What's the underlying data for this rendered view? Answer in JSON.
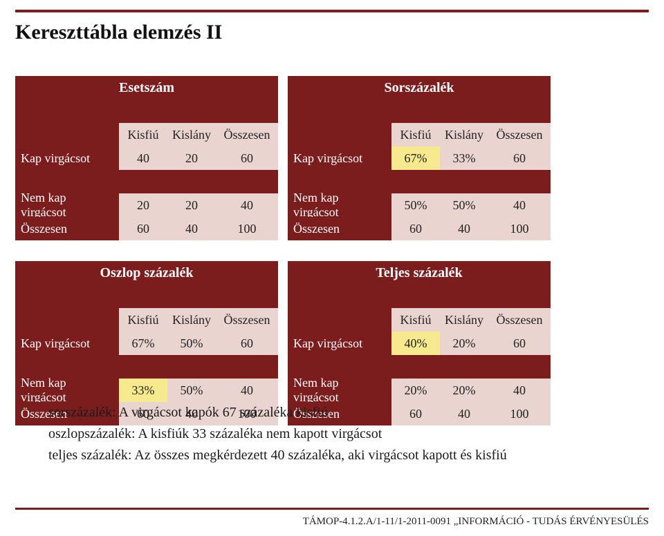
{
  "title": {
    "text": "Kereszttábla elemzés II",
    "fontsize": 30
  },
  "colors": {
    "accent": "#7b1d1d",
    "row_light": "#e9d4d0",
    "highlight": "#f7e98e",
    "text": "#1a1a1a",
    "bg": "#ffffff"
  },
  "font": {
    "body_size": 18,
    "header_size": 20,
    "interp_size": 20,
    "footer_size": 15
  },
  "labels": {
    "esetszam": "Esetszám",
    "sorszazalek": "Sorszázalék",
    "oszlop": "Oszlop százalék",
    "teljes": "Teljes százalék",
    "kisfiu": "Kisfiú",
    "kislany": "Kislány",
    "osszesen": "Összesen",
    "kap": "Kap virgácsot",
    "nemkap": "Nem kap virgácsot"
  },
  "tables": {
    "esetszam": {
      "header": "Esetszám",
      "cols": [
        "Kisfiú",
        "Kislány",
        "Összesen"
      ],
      "rows": [
        {
          "label": "Kap virgácsot",
          "vals": [
            "40",
            "20",
            "60"
          ],
          "hl": []
        },
        {
          "label": "Nem kap virgácsot",
          "vals": [
            "20",
            "20",
            "40"
          ],
          "hl": []
        },
        {
          "label": "Összesen",
          "vals": [
            "60",
            "40",
            "100"
          ],
          "hl": []
        }
      ]
    },
    "sorszazalek": {
      "header": "Sorszázalék",
      "cols": [
        "Kisfiú",
        "Kislány",
        "Összesen"
      ],
      "rows": [
        {
          "label": "Kap virgácsot",
          "vals": [
            "67%",
            "33%",
            "60"
          ],
          "hl": [
            0
          ]
        },
        {
          "label": "Nem kap virgácsot",
          "vals": [
            "50%",
            "50%",
            "40"
          ],
          "hl": []
        },
        {
          "label": "Összesen",
          "vals": [
            "60",
            "40",
            "100"
          ],
          "hl": []
        }
      ]
    },
    "oszlop": {
      "header": "Oszlop százalék",
      "cols": [
        "Kisfiú",
        "Kislány",
        "Összesen"
      ],
      "rows": [
        {
          "label": "Kap virgácsot",
          "vals": [
            "67%",
            "50%",
            "60"
          ],
          "hl": []
        },
        {
          "label": "Nem kap virgácsot",
          "vals": [
            "33%",
            "50%",
            "40"
          ],
          "hl": [
            0
          ]
        },
        {
          "label": "Összesen",
          "vals": [
            "60",
            "40",
            "100"
          ],
          "hl": []
        }
      ]
    },
    "teljes": {
      "header": "Teljes százalék",
      "cols": [
        "Kisfiú",
        "Kislány",
        "Összesen"
      ],
      "rows": [
        {
          "label": "Kap virgácsot",
          "vals": [
            "40%",
            "20%",
            "60"
          ],
          "hl": [
            0
          ]
        },
        {
          "label": "Nem kap virgácsot",
          "vals": [
            "20%",
            "20%",
            "40"
          ],
          "hl": []
        },
        {
          "label": "Összesen",
          "vals": [
            "60",
            "40",
            "100"
          ],
          "hl": []
        }
      ]
    }
  },
  "interpretation": {
    "line1": "sorszázalék: A virgácsot kapók 67 százaléka kisfiú",
    "line2": "oszlopszázalék: A kisfiúk 33 százaléka nem kapott virgácsot",
    "line3": "teljes százalék: Az összes megkérdezett 40 százaléka, aki virgácsot kapott és kisfiú"
  },
  "footer": "TÁMOP-4.1.2.A/1-11/1-2011-0091 „INFORMÁCIÓ - TUDÁS ÉRVÉNYESÜLÉS"
}
